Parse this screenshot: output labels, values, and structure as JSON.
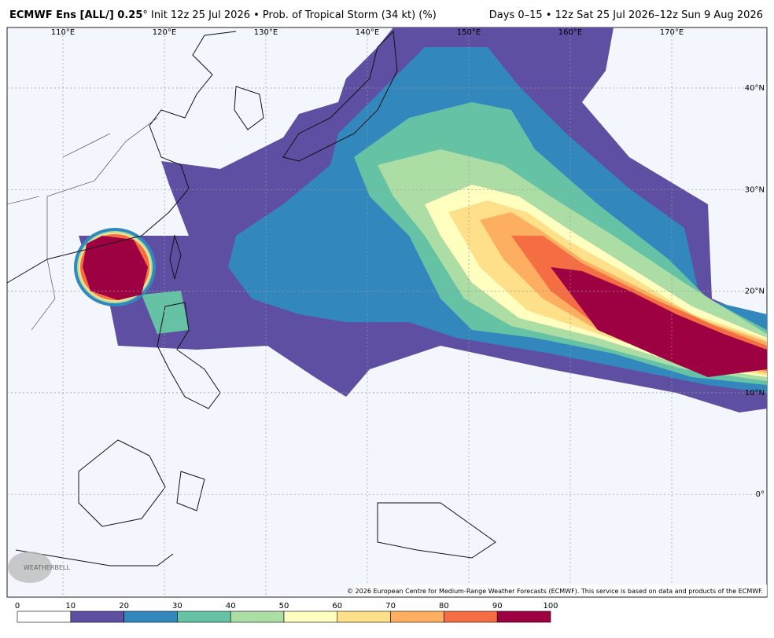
{
  "header": {
    "title_bold": "ECMWF Ens [ALL/] 0.25",
    "title_rest": "° Init 12z 25 Jul 2026 • Prob. of Tropical Storm (34 kt) (%)",
    "period": "Days 0–15 • 12z Sat 25 Jul 2026–12z Sun 9 Aug 2026"
  },
  "map": {
    "lon_labels": [
      "110°E",
      "120°E",
      "130°E",
      "140°E",
      "150°E",
      "160°E",
      "170°E"
    ],
    "lat_labels": [
      "40°N",
      "30°N",
      "20°N",
      "10°N",
      "0°"
    ],
    "copyright": "© 2026 European Centre for Medium-Range Weather Forecasts (ECMWF). This service is based on data and products of the ECMWF.",
    "logo": "WEATHERBELL"
  },
  "colorbar": {
    "ticks": [
      0,
      10,
      20,
      30,
      40,
      50,
      60,
      70,
      80,
      90,
      100
    ],
    "colors": [
      "#ffffff",
      "#5e4fa2",
      "#3288bd",
      "#66c2a5",
      "#abdda4",
      "#ffffbf",
      "#fee08b",
      "#fdae61",
      "#f46d43",
      "#9e0142"
    ]
  }
}
